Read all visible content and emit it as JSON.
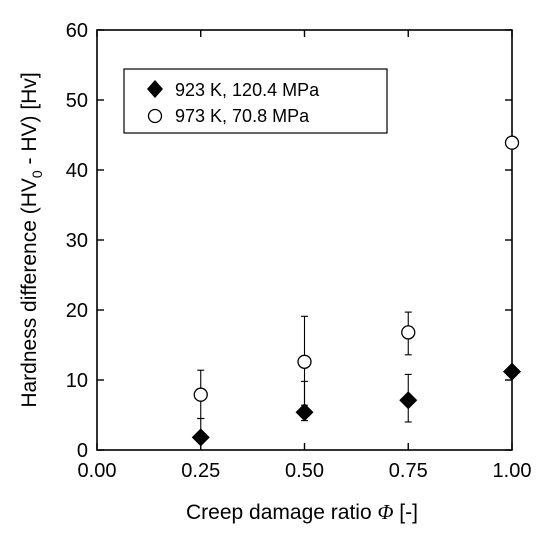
{
  "chart_data": {
    "type": "scatter",
    "title": "",
    "xlabel": "Creep damage ratio Φ [-]",
    "xlabel_parts": {
      "pre": "Creep damage ratio ",
      "symbol": "Φ",
      "post": " [-]"
    },
    "ylabel": "Hardness difference (HV0 - HV) [Hv]",
    "ylabel_parts": {
      "pre": "Hardness difference (HV",
      "sub": "0",
      "post": " - HV) [Hv]"
    },
    "xlim": [
      0,
      1
    ],
    "ylim": [
      0,
      60
    ],
    "xticks": [
      0,
      0.25,
      0.5,
      0.75,
      1.0
    ],
    "xtick_labels": [
      "0.00",
      "0.25",
      "0.50",
      "0.75",
      "1.00"
    ],
    "yticks": [
      0,
      10,
      20,
      30,
      40,
      50,
      60
    ],
    "ytick_labels": [
      "0",
      "10",
      "20",
      "30",
      "40",
      "50",
      "60"
    ],
    "grid": false,
    "legend_position": "top-left",
    "series": [
      {
        "name": "923 K, 120.4 MPa",
        "marker": "filled-diamond",
        "color": "#000000",
        "x": [
          0.25,
          0.5,
          0.75,
          1.0
        ],
        "y": [
          1.8,
          5.4,
          7.1,
          11.2
        ],
        "err_low": [
          1.2,
          4.2,
          4.0,
          null
        ],
        "err_high": [
          4.5,
          9.8,
          10.8,
          null
        ]
      },
      {
        "name": "973 K, 70.8 MPa",
        "marker": "open-circle",
        "color": "#000000",
        "x": [
          0.25,
          0.5,
          0.75,
          1.0
        ],
        "y": [
          7.9,
          12.6,
          16.8,
          43.9
        ],
        "err_low": [
          4.5,
          6.4,
          13.6,
          null
        ],
        "err_high": [
          11.4,
          19.1,
          19.7,
          null
        ]
      }
    ]
  }
}
